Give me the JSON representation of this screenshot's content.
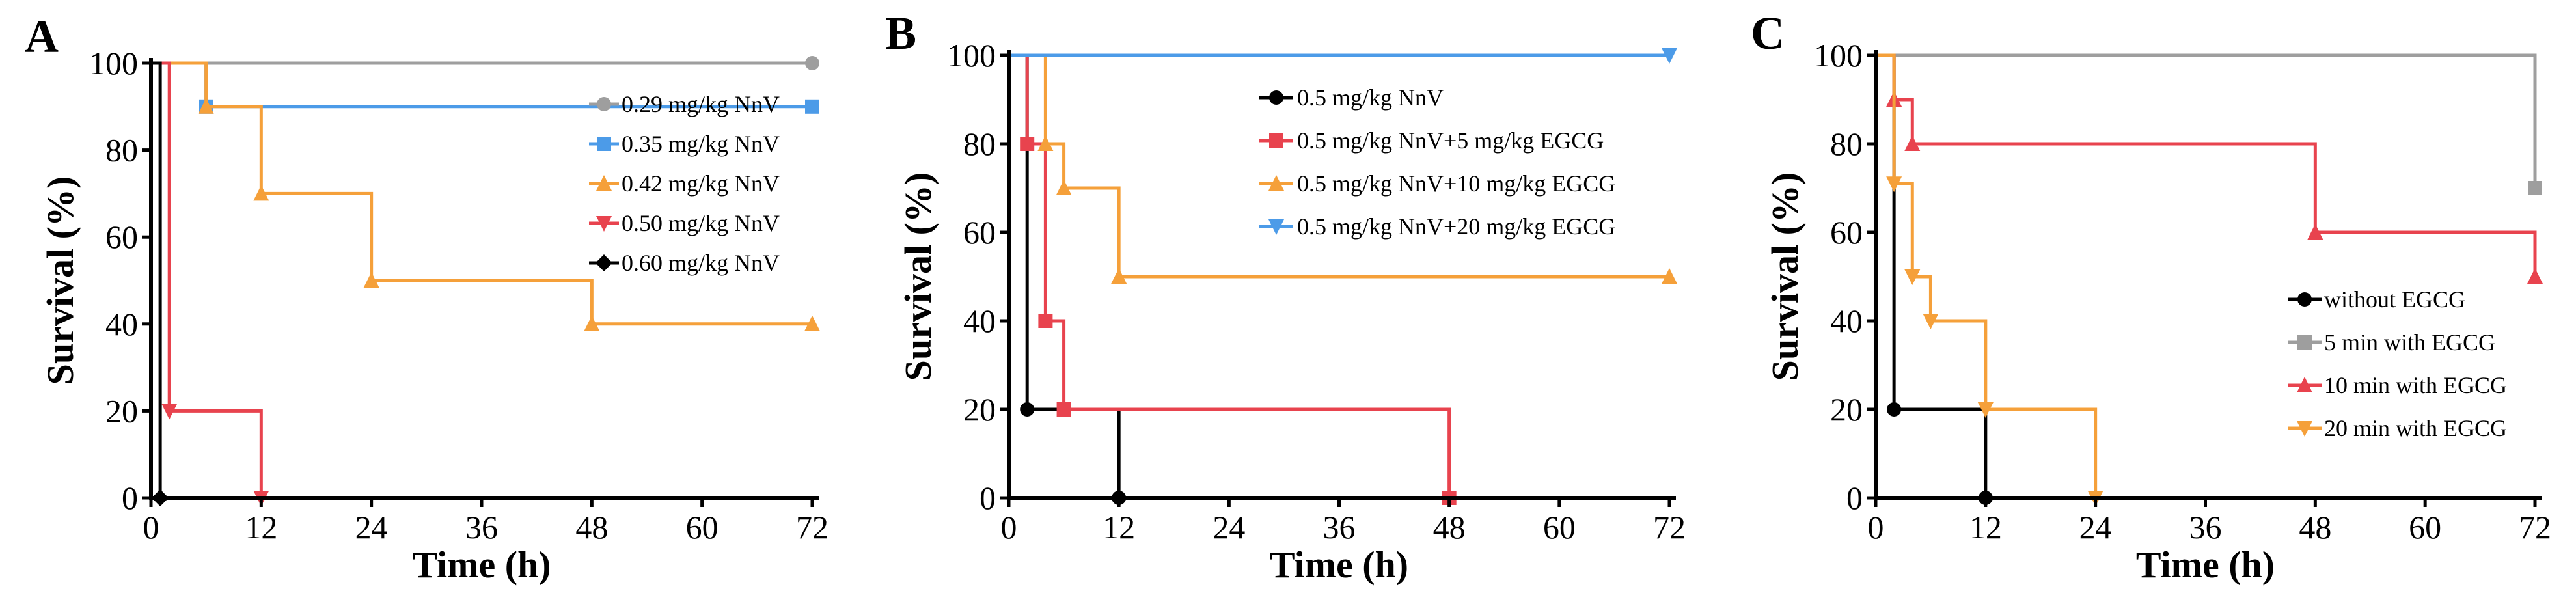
{
  "chart_data": [
    {
      "panel": "A",
      "type": "line",
      "xlabel": "Time (h)",
      "ylabel": "Survival (%)",
      "xlim": [
        0,
        72
      ],
      "ylim": [
        0,
        100
      ],
      "xticks": [
        0,
        12,
        24,
        36,
        48,
        60,
        72
      ],
      "yticks": [
        0,
        20,
        40,
        60,
        80,
        100
      ],
      "series": [
        {
          "name": "0.29 mg/kg NnV",
          "color": "#9e9e9e",
          "marker": "circle",
          "x": [
            0,
            72
          ],
          "y": [
            100,
            100
          ]
        },
        {
          "name": "0.35 mg/kg NnV",
          "color": "#4c9be8",
          "marker": "square",
          "x": [
            0,
            6,
            72
          ],
          "y": [
            100,
            90,
            90
          ]
        },
        {
          "name": "0.42 mg/kg NnV",
          "color": "#f5a03a",
          "marker": "triangle-up",
          "x": [
            0,
            6,
            12,
            24,
            48,
            72
          ],
          "y": [
            100,
            90,
            70,
            50,
            40,
            40
          ]
        },
        {
          "name": "0.50 mg/kg NnV",
          "color": "#e8434e",
          "marker": "triangle-down",
          "x": [
            0,
            2,
            12
          ],
          "y": [
            100,
            20,
            0
          ]
        },
        {
          "name": "0.60 mg/kg NnV",
          "color": "#000000",
          "marker": "diamond",
          "x": [
            0,
            1
          ],
          "y": [
            100,
            0
          ]
        }
      ]
    },
    {
      "panel": "B",
      "type": "line",
      "xlabel": "Time (h)",
      "ylabel": "Survival (%)",
      "xlim": [
        0,
        72
      ],
      "ylim": [
        0,
        100
      ],
      "xticks": [
        0,
        12,
        24,
        36,
        48,
        60,
        72
      ],
      "yticks": [
        0,
        20,
        40,
        60,
        80,
        100
      ],
      "series": [
        {
          "name": "0.5 mg/kg NnV",
          "color": "#000000",
          "marker": "circle",
          "x": [
            0,
            2,
            12
          ],
          "y": [
            100,
            20,
            0
          ]
        },
        {
          "name": "0.5 mg/kg NnV+5 mg/kg EGCG",
          "color": "#e8434e",
          "marker": "square",
          "x": [
            0,
            2,
            4,
            6,
            48
          ],
          "y": [
            100,
            80,
            40,
            20,
            0
          ]
        },
        {
          "name": "0.5 mg/kg NnV+10 mg/kg EGCG",
          "color": "#f5a03a",
          "marker": "triangle-up",
          "x": [
            0,
            4,
            6,
            12,
            72
          ],
          "y": [
            100,
            80,
            70,
            50,
            50
          ]
        },
        {
          "name": "0.5 mg/kg NnV+20 mg/kg EGCG",
          "color": "#4c9be8",
          "marker": "triangle-down",
          "x": [
            0,
            72
          ],
          "y": [
            100,
            100
          ]
        }
      ]
    },
    {
      "panel": "C",
      "type": "line",
      "xlabel": "Time (h)",
      "ylabel": "Survival (%)",
      "xlim": [
        0,
        72
      ],
      "ylim": [
        0,
        100
      ],
      "xticks": [
        0,
        12,
        24,
        36,
        48,
        60,
        72
      ],
      "yticks": [
        0,
        20,
        40,
        60,
        80,
        100
      ],
      "series": [
        {
          "name": "without EGCG",
          "color": "#000000",
          "marker": "circle",
          "x": [
            0,
            2,
            12
          ],
          "y": [
            100,
            20,
            0
          ]
        },
        {
          "name": "5 min with EGCG",
          "color": "#9e9e9e",
          "marker": "square",
          "x": [
            0,
            72
          ],
          "y": [
            100,
            70
          ]
        },
        {
          "name": "10 min with EGCG",
          "color": "#e8434e",
          "marker": "triangle-up",
          "x": [
            0,
            2,
            4,
            48,
            72
          ],
          "y": [
            100,
            90,
            80,
            60,
            50
          ]
        },
        {
          "name": "20 min with EGCG",
          "color": "#f5a03a",
          "marker": "triangle-down",
          "x": [
            0,
            2,
            4,
            6,
            12,
            24
          ],
          "y": [
            100,
            71,
            50,
            40,
            20,
            0
          ]
        }
      ]
    }
  ]
}
